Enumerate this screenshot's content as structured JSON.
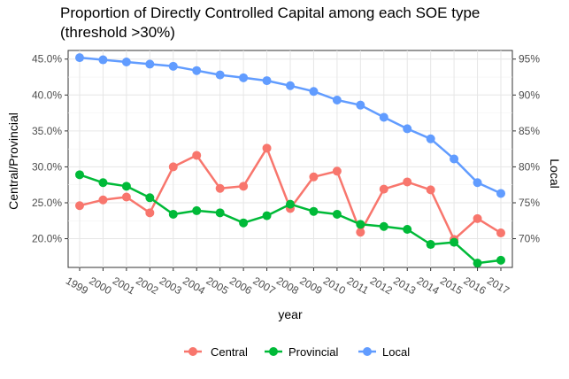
{
  "chart_data": {
    "type": "line",
    "title_lines": [
      "Proportion of Directly Controlled Capital among each SOE type",
      "(threshold >30%)"
    ],
    "xlabel": "year",
    "ylabel_left": "Central/Provincial",
    "ylabel_right": "Local",
    "x": [
      1999,
      2000,
      2001,
      2002,
      2003,
      2004,
      2005,
      2006,
      2007,
      2008,
      2009,
      2010,
      2011,
      2012,
      2013,
      2014,
      2015,
      2016,
      2017
    ],
    "left_axis": {
      "ylim": [
        16.0,
        46.2
      ],
      "ticks": [
        20,
        25,
        30,
        35,
        40,
        45
      ],
      "tick_labels": [
        "20.0%",
        "25.0%",
        "30.0%",
        "35.0%",
        "40.0%",
        "45.0%"
      ]
    },
    "right_axis": {
      "ylim": [
        66.0,
        96.2
      ],
      "ticks": [
        70,
        75,
        80,
        85,
        90,
        95
      ],
      "tick_labels": [
        "70%",
        "75%",
        "80%",
        "85%",
        "90%",
        "95%"
      ]
    },
    "series": [
      {
        "name": "Central",
        "axis": "left",
        "color": "#f8766d",
        "values": [
          24.6,
          25.4,
          25.8,
          23.6,
          30.0,
          31.6,
          27.0,
          27.3,
          32.6,
          24.2,
          28.6,
          29.4,
          20.9,
          26.9,
          27.9,
          26.8,
          19.9,
          22.8,
          20.8
        ]
      },
      {
        "name": "Provincial",
        "axis": "left",
        "color": "#00ba38",
        "values": [
          28.9,
          27.8,
          27.3,
          25.7,
          23.4,
          23.9,
          23.6,
          22.2,
          23.2,
          24.8,
          23.8,
          23.4,
          22.0,
          21.7,
          21.3,
          19.2,
          19.5,
          16.6,
          17.0
        ]
      },
      {
        "name": "Local",
        "axis": "right",
        "color": "#619cff",
        "values": [
          95.2,
          94.9,
          94.6,
          94.3,
          94.0,
          93.4,
          92.8,
          92.4,
          92.0,
          91.3,
          90.5,
          89.3,
          88.6,
          86.9,
          85.3,
          83.9,
          81.1,
          77.8,
          76.3
        ]
      }
    ],
    "grid": true,
    "legend_position": "bottom"
  }
}
